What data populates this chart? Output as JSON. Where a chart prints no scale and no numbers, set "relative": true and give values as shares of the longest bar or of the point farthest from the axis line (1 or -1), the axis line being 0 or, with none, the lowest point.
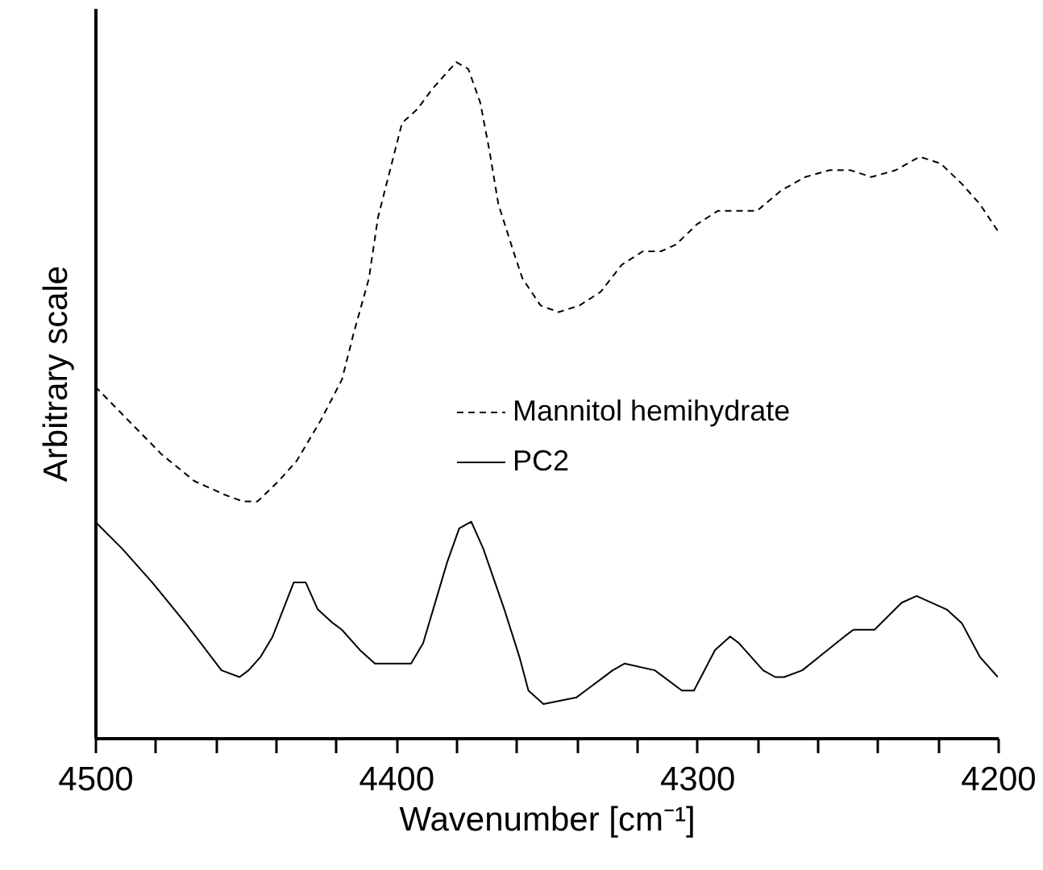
{
  "chart_data": {
    "type": "line",
    "relative": true,
    "xlabel": "Wavenumber [cm⁻¹]",
    "ylabel": "Arbitrary scale",
    "xlim": [
      4500,
      4200
    ],
    "xticks": [
      4500,
      {
        "value": 4480,
        "label": null
      },
      {
        "value": 4460,
        "label": null
      },
      {
        "value": 4440,
        "label": null
      },
      {
        "value": 4420,
        "label": null
      },
      4400,
      {
        "value": 4380,
        "label": null
      },
      {
        "value": 4360,
        "label": null
      },
      {
        "value": 4340,
        "label": null
      },
      {
        "value": 4320,
        "label": null
      },
      4300,
      {
        "value": 4280,
        "label": null
      },
      {
        "value": 4260,
        "label": null
      },
      {
        "value": 4240,
        "label": null
      },
      {
        "value": 4220,
        "label": null
      },
      4200
    ],
    "grid": false,
    "legend": "right",
    "marker": "none",
    "series": [
      {
        "name": "Mannitol hemihydrate",
        "color": "#000000",
        "line_style": "dashed",
        "x": [
          4500,
          4489,
          4478,
          4467,
          4457,
          4451,
          4446,
          4439,
          4433,
          4425,
          4418,
          4414,
          4409,
          4406,
          4402,
          4398,
          4393,
          4388,
          4384,
          4380,
          4376,
          4372,
          4369,
          4366,
          4361,
          4358,
          4352,
          4346,
          4339,
          4332,
          4325,
          4318,
          4312,
          4307,
          4300,
          4293,
          4287,
          4280,
          4272,
          4264,
          4256,
          4249,
          4242,
          4234,
          4226,
          4219,
          4212,
          4206,
          4200
        ],
        "values": [
          0.52,
          0.47,
          0.42,
          0.38,
          0.36,
          0.35,
          0.35,
          0.38,
          0.41,
          0.47,
          0.53,
          0.6,
          0.68,
          0.77,
          0.84,
          0.91,
          0.93,
          0.96,
          0.98,
          1,
          0.99,
          0.94,
          0.87,
          0.79,
          0.72,
          0.68,
          0.64,
          0.63,
          0.64,
          0.66,
          0.7,
          0.72,
          0.72,
          0.73,
          0.76,
          0.78,
          0.78,
          0.78,
          0.81,
          0.83,
          0.84,
          0.84,
          0.83,
          0.84,
          0.86,
          0.85,
          0.82,
          0.79,
          0.75
        ]
      },
      {
        "name": "PC2",
        "color": "#000000",
        "line_style": "solid",
        "x": [
          4500,
          4491,
          4481,
          4470,
          4458,
          4452,
          4449,
          4445,
          4441,
          4434,
          4430,
          4426,
          4421,
          4418,
          4412,
          4407,
          4399,
          4395,
          4391,
          4383,
          4379,
          4375,
          4371,
          4364,
          4359,
          4356,
          4351,
          4340,
          4337,
          4328,
          4324,
          4314,
          4305,
          4301,
          4294,
          4289,
          4286,
          4278,
          4274,
          4271,
          4265,
          4251,
          4248,
          4241,
          4232,
          4227,
          4217,
          4212,
          4206,
          4200
        ],
        "values": [
          0.32,
          0.28,
          0.23,
          0.17,
          0.1,
          0.09,
          0.1,
          0.12,
          0.15,
          0.23,
          0.23,
          0.19,
          0.17,
          0.16,
          0.13,
          0.11,
          0.11,
          0.11,
          0.14,
          0.26,
          0.31,
          0.32,
          0.28,
          0.19,
          0.12,
          0.07,
          0.05,
          0.06,
          0.07,
          0.1,
          0.11,
          0.1,
          0.07,
          0.07,
          0.13,
          0.15,
          0.14,
          0.1,
          0.09,
          0.09,
          0.1,
          0.15,
          0.16,
          0.16,
          0.2,
          0.21,
          0.19,
          0.17,
          0.12,
          0.09
        ]
      }
    ]
  }
}
